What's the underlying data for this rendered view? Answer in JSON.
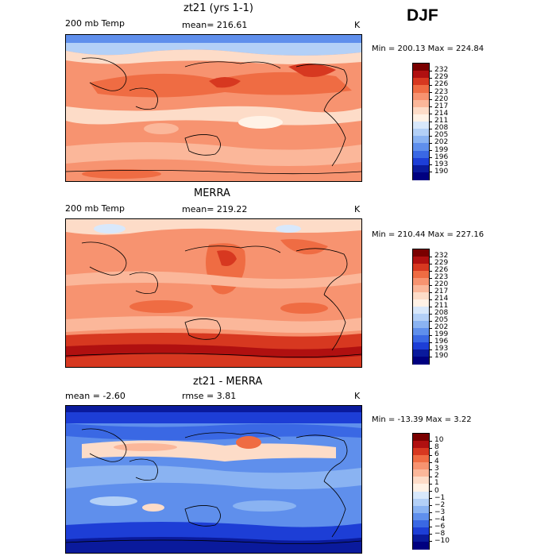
{
  "season": "DJF",
  "panels": [
    {
      "title": "zt21 (yrs 1-1)",
      "left_label": "200 mb Temp",
      "mid_label": "mean= 216.61",
      "right_label": "K",
      "minmax": "Min = 200.13 Max = 224.84",
      "colorbar": {
        "labels": [
          "232",
          "229",
          "226",
          "223",
          "220",
          "217",
          "214",
          "211",
          "208",
          "205",
          "202",
          "199",
          "196",
          "193",
          "190"
        ],
        "colors": [
          "#7a0000",
          "#b01010",
          "#d73820",
          "#ef6c43",
          "#f79370",
          "#fbb79a",
          "#fddcc8",
          "#fff2e6",
          "#d8e8fb",
          "#b3d0f7",
          "#8ab3f2",
          "#5f8fec",
          "#3a68e4",
          "#1d3ed6",
          "#0a1a9c",
          "#000080"
        ]
      },
      "chart_data": {
        "type": "heatmap",
        "variable": "200 mb Temp",
        "units": "K",
        "mean": 216.61,
        "min": 200.13,
        "max": 224.84,
        "x": "longitude 0-360",
        "y": "latitude -90 to 90"
      }
    },
    {
      "title": "MERRA",
      "left_label": "200 mb Temp",
      "mid_label": "mean= 219.22",
      "right_label": "K",
      "minmax": "Min = 210.44 Max = 227.16",
      "colorbar": {
        "labels": [
          "232",
          "229",
          "226",
          "223",
          "220",
          "217",
          "214",
          "211",
          "208",
          "205",
          "202",
          "199",
          "196",
          "193",
          "190"
        ],
        "colors": [
          "#7a0000",
          "#b01010",
          "#d73820",
          "#ef6c43",
          "#f79370",
          "#fbb79a",
          "#fddcc8",
          "#fff2e6",
          "#d8e8fb",
          "#b3d0f7",
          "#8ab3f2",
          "#5f8fec",
          "#3a68e4",
          "#1d3ed6",
          "#0a1a9c",
          "#000080"
        ]
      },
      "chart_data": {
        "type": "heatmap",
        "variable": "200 mb Temp",
        "units": "K",
        "mean": 219.22,
        "min": 210.44,
        "max": 227.16,
        "x": "longitude 0-360",
        "y": "latitude -90 to 90"
      }
    },
    {
      "title": "zt21 - MERRA",
      "left_label": "mean =   -2.60",
      "mid_label": "rmse =   3.81",
      "right_label": "K",
      "minmax": "Min = -13.39 Max =   3.22",
      "colorbar": {
        "labels": [
          "10",
          "8",
          "6",
          "4",
          "3",
          "2",
          "1",
          "0",
          "−1",
          "−2",
          "−3",
          "−4",
          "−6",
          "−8",
          "−10"
        ],
        "colors": [
          "#7a0000",
          "#b01010",
          "#d73820",
          "#ef6c43",
          "#f79370",
          "#fbb79a",
          "#fddcc8",
          "#fff2e6",
          "#d8e8fb",
          "#b3d0f7",
          "#8ab3f2",
          "#5f8fec",
          "#3a68e4",
          "#1d3ed6",
          "#0a1a9c",
          "#000080"
        ]
      },
      "chart_data": {
        "type": "heatmap",
        "variable": "difference zt21 - MERRA",
        "units": "K",
        "mean": -2.6,
        "rmse": 3.81,
        "min": -13.39,
        "max": 3.22,
        "x": "longitude 0-360",
        "y": "latitude -90 to 90"
      }
    }
  ]
}
